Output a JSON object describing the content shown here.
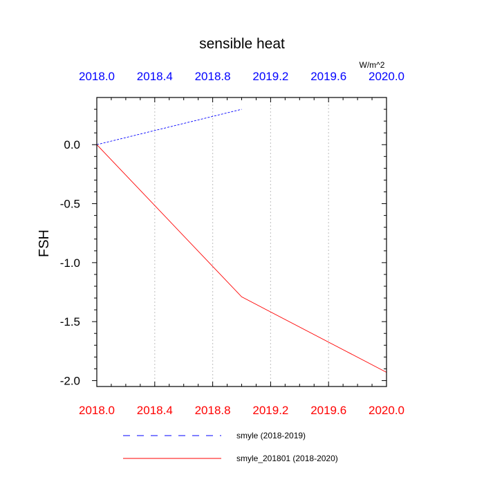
{
  "chart_data": {
    "type": "line",
    "title": "sensible heat",
    "units_label": "W/m^2",
    "ylabel": "FSH",
    "xlabel": "",
    "ylim": [
      -2.05,
      0.4
    ],
    "yticks": [
      0.0,
      -0.5,
      -1.0,
      -1.5,
      -2.0
    ],
    "ytick_labels": [
      "0.0",
      "-0.5",
      "-1.0",
      "-1.5",
      "-2.0"
    ],
    "bottom_axis": {
      "range": [
        2018.0,
        2020.0
      ],
      "ticks": [
        2018.0,
        2018.4,
        2018.8,
        2019.2,
        2019.6,
        2020.0
      ],
      "tick_labels": [
        "2018.0",
        "2018.4",
        "2018.8",
        "2019.2",
        "2019.6",
        "2020.0"
      ],
      "color": "#ff0000"
    },
    "top_axis": {
      "range": [
        2018.0,
        2020.0
      ],
      "ticks": [
        2018.0,
        2018.4,
        2018.8,
        2019.2,
        2019.6,
        2020.0
      ],
      "tick_labels": [
        "2018.0",
        "2018.4",
        "2018.8",
        "2019.2",
        "2019.6",
        "2020.0"
      ],
      "color": "#0000ff"
    },
    "grid": "vertical dotted at major x ticks",
    "legend_placement": "bottom",
    "series": [
      {
        "name": "smyle (2018-2019)",
        "color": "#0000ff",
        "dash": "dashed",
        "axis": "top",
        "x": [
          2018.0,
          2019.0
        ],
        "y": [
          0.0,
          0.3
        ]
      },
      {
        "name": "smyle_201801 (2018-2020)",
        "color": "#ff0000",
        "dash": "solid",
        "axis": "bottom",
        "x": [
          2018.0,
          2019.0,
          2020.0
        ],
        "y": [
          0.0,
          -1.29,
          -1.93
        ]
      }
    ]
  }
}
